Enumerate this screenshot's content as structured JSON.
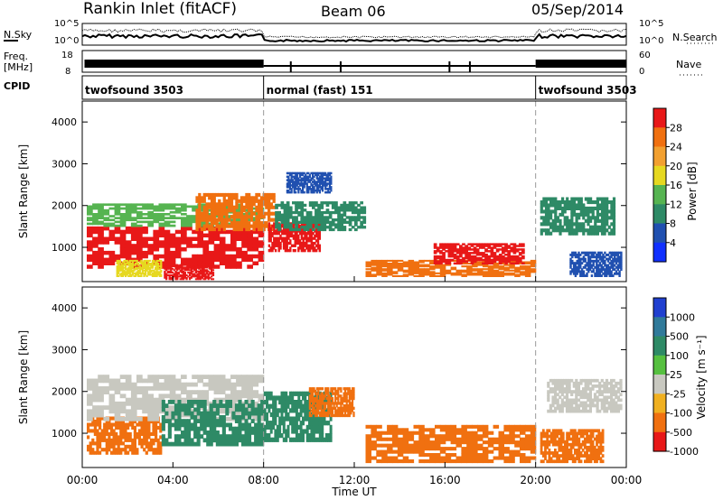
{
  "header": {
    "title": "Rankin Inlet (fitACF)",
    "beam": "Beam 06",
    "date": "05/Sep/2014"
  },
  "left_labels": {
    "nsky": "N.Sky",
    "freq": "Freq.",
    "freq_unit": "[MHz]",
    "cpid": "CPID"
  },
  "right_labels": {
    "nsearch": "N.Search",
    "nave": "Nave"
  },
  "top_panels": {
    "noise_ticks_left": [
      "10^5",
      "10^0"
    ],
    "noise_ticks_right": [
      "10^5",
      "10^0"
    ],
    "freq_ticks": [
      "18",
      "8"
    ],
    "nave_ticks": [
      "60",
      "0"
    ]
  },
  "cpid_segments": [
    {
      "label": "twofsound 3503",
      "start_h": 0,
      "end_h": 8
    },
    {
      "label": "normal (fast) 151",
      "start_h": 8,
      "end_h": 20
    },
    {
      "label": "twofsound 3503",
      "start_h": 20,
      "end_h": 24
    }
  ],
  "xaxis": {
    "label": "Time UT",
    "ticks": [
      "00:00",
      "04:00",
      "08:00",
      "12:00",
      "16:00",
      "20:00",
      "00:00"
    ]
  },
  "chart_data": [
    {
      "type": "heatmap",
      "name": "power",
      "ylabel": "Slant Range [km]",
      "yticks": [
        "1000",
        "2000",
        "3000",
        "4000"
      ],
      "ylim": [
        180,
        4500
      ],
      "xlim_hours": [
        0,
        24
      ],
      "colorbar_label": "Power [dB]",
      "colorbar_ticks": [
        "4",
        "8",
        "12",
        "16",
        "20",
        "24",
        "28"
      ],
      "colorbar_colors": [
        "#1030ff",
        "#2050b0",
        "#2e8a66",
        "#56b451",
        "#e6d820",
        "#f2a030",
        "#f07010",
        "#e81818"
      ],
      "regions": [
        {
          "t0": 0.2,
          "t1": 8.0,
          "r0": 500,
          "r1": 1500,
          "color": "#e81818"
        },
        {
          "t0": 0.2,
          "t1": 8.0,
          "r0": 1500,
          "r1": 2050,
          "color": "#56b451"
        },
        {
          "t0": 1.5,
          "t1": 3.5,
          "r0": 300,
          "r1": 700,
          "color": "#e6d820"
        },
        {
          "t0": 3.6,
          "t1": 5.8,
          "r0": 230,
          "r1": 600,
          "color": "#e81818"
        },
        {
          "t0": 5.0,
          "t1": 8.5,
          "r0": 1400,
          "r1": 2300,
          "color": "#f07010"
        },
        {
          "t0": 8.2,
          "t1": 10.5,
          "r0": 900,
          "r1": 1600,
          "color": "#e81818"
        },
        {
          "t0": 8.5,
          "t1": 12.5,
          "r0": 1400,
          "r1": 2100,
          "color": "#2e8a66"
        },
        {
          "t0": 9.0,
          "t1": 11.0,
          "r0": 2300,
          "r1": 2800,
          "color": "#2050b0"
        },
        {
          "t0": 12.5,
          "t1": 20.0,
          "r0": 300,
          "r1": 700,
          "color": "#f07010"
        },
        {
          "t0": 15.5,
          "t1": 19.5,
          "r0": 600,
          "r1": 1100,
          "color": "#e81818"
        },
        {
          "t0": 20.2,
          "t1": 23.5,
          "r0": 1300,
          "r1": 2200,
          "color": "#2e8a66"
        },
        {
          "t0": 21.5,
          "t1": 23.8,
          "r0": 300,
          "r1": 900,
          "color": "#2050b0"
        }
      ]
    },
    {
      "type": "heatmap",
      "name": "velocity",
      "ylabel": "Slant Range [km]",
      "yticks": [
        "1000",
        "2000",
        "3000",
        "4000"
      ],
      "ylim": [
        180,
        4500
      ],
      "xlim_hours": [
        0,
        24
      ],
      "colorbar_label": "Velocity [m s⁻¹]",
      "colorbar_ticks": [
        "1000",
        "500",
        "100",
        "25",
        "-25",
        "-100",
        "-500",
        "-1000"
      ],
      "colorbar_colors": [
        "#2040d0",
        "#307a9a",
        "#2e8a66",
        "#56c040",
        "#c8c8c0",
        "#f0b020",
        "#f07010",
        "#e81818"
      ],
      "regions": [
        {
          "t0": 0.2,
          "t1": 3.5,
          "r0": 500,
          "r1": 1400,
          "color": "#f07010"
        },
        {
          "t0": 0.2,
          "t1": 8.0,
          "r0": 1300,
          "r1": 2400,
          "color": "#c8c8c0"
        },
        {
          "t0": 3.5,
          "t1": 8.0,
          "r0": 700,
          "r1": 1800,
          "color": "#2e8a66"
        },
        {
          "t0": 8.0,
          "t1": 11.0,
          "r0": 800,
          "r1": 2000,
          "color": "#2e8a66"
        },
        {
          "t0": 10.0,
          "t1": 12.0,
          "r0": 1400,
          "r1": 2100,
          "color": "#f07010"
        },
        {
          "t0": 12.5,
          "t1": 20.0,
          "r0": 300,
          "r1": 1200,
          "color": "#f07010"
        },
        {
          "t0": 20.5,
          "t1": 23.8,
          "r0": 1500,
          "r1": 2300,
          "color": "#c8c8c0"
        },
        {
          "t0": 20.2,
          "t1": 23.0,
          "r0": 300,
          "r1": 1100,
          "color": "#f07010"
        }
      ]
    }
  ]
}
